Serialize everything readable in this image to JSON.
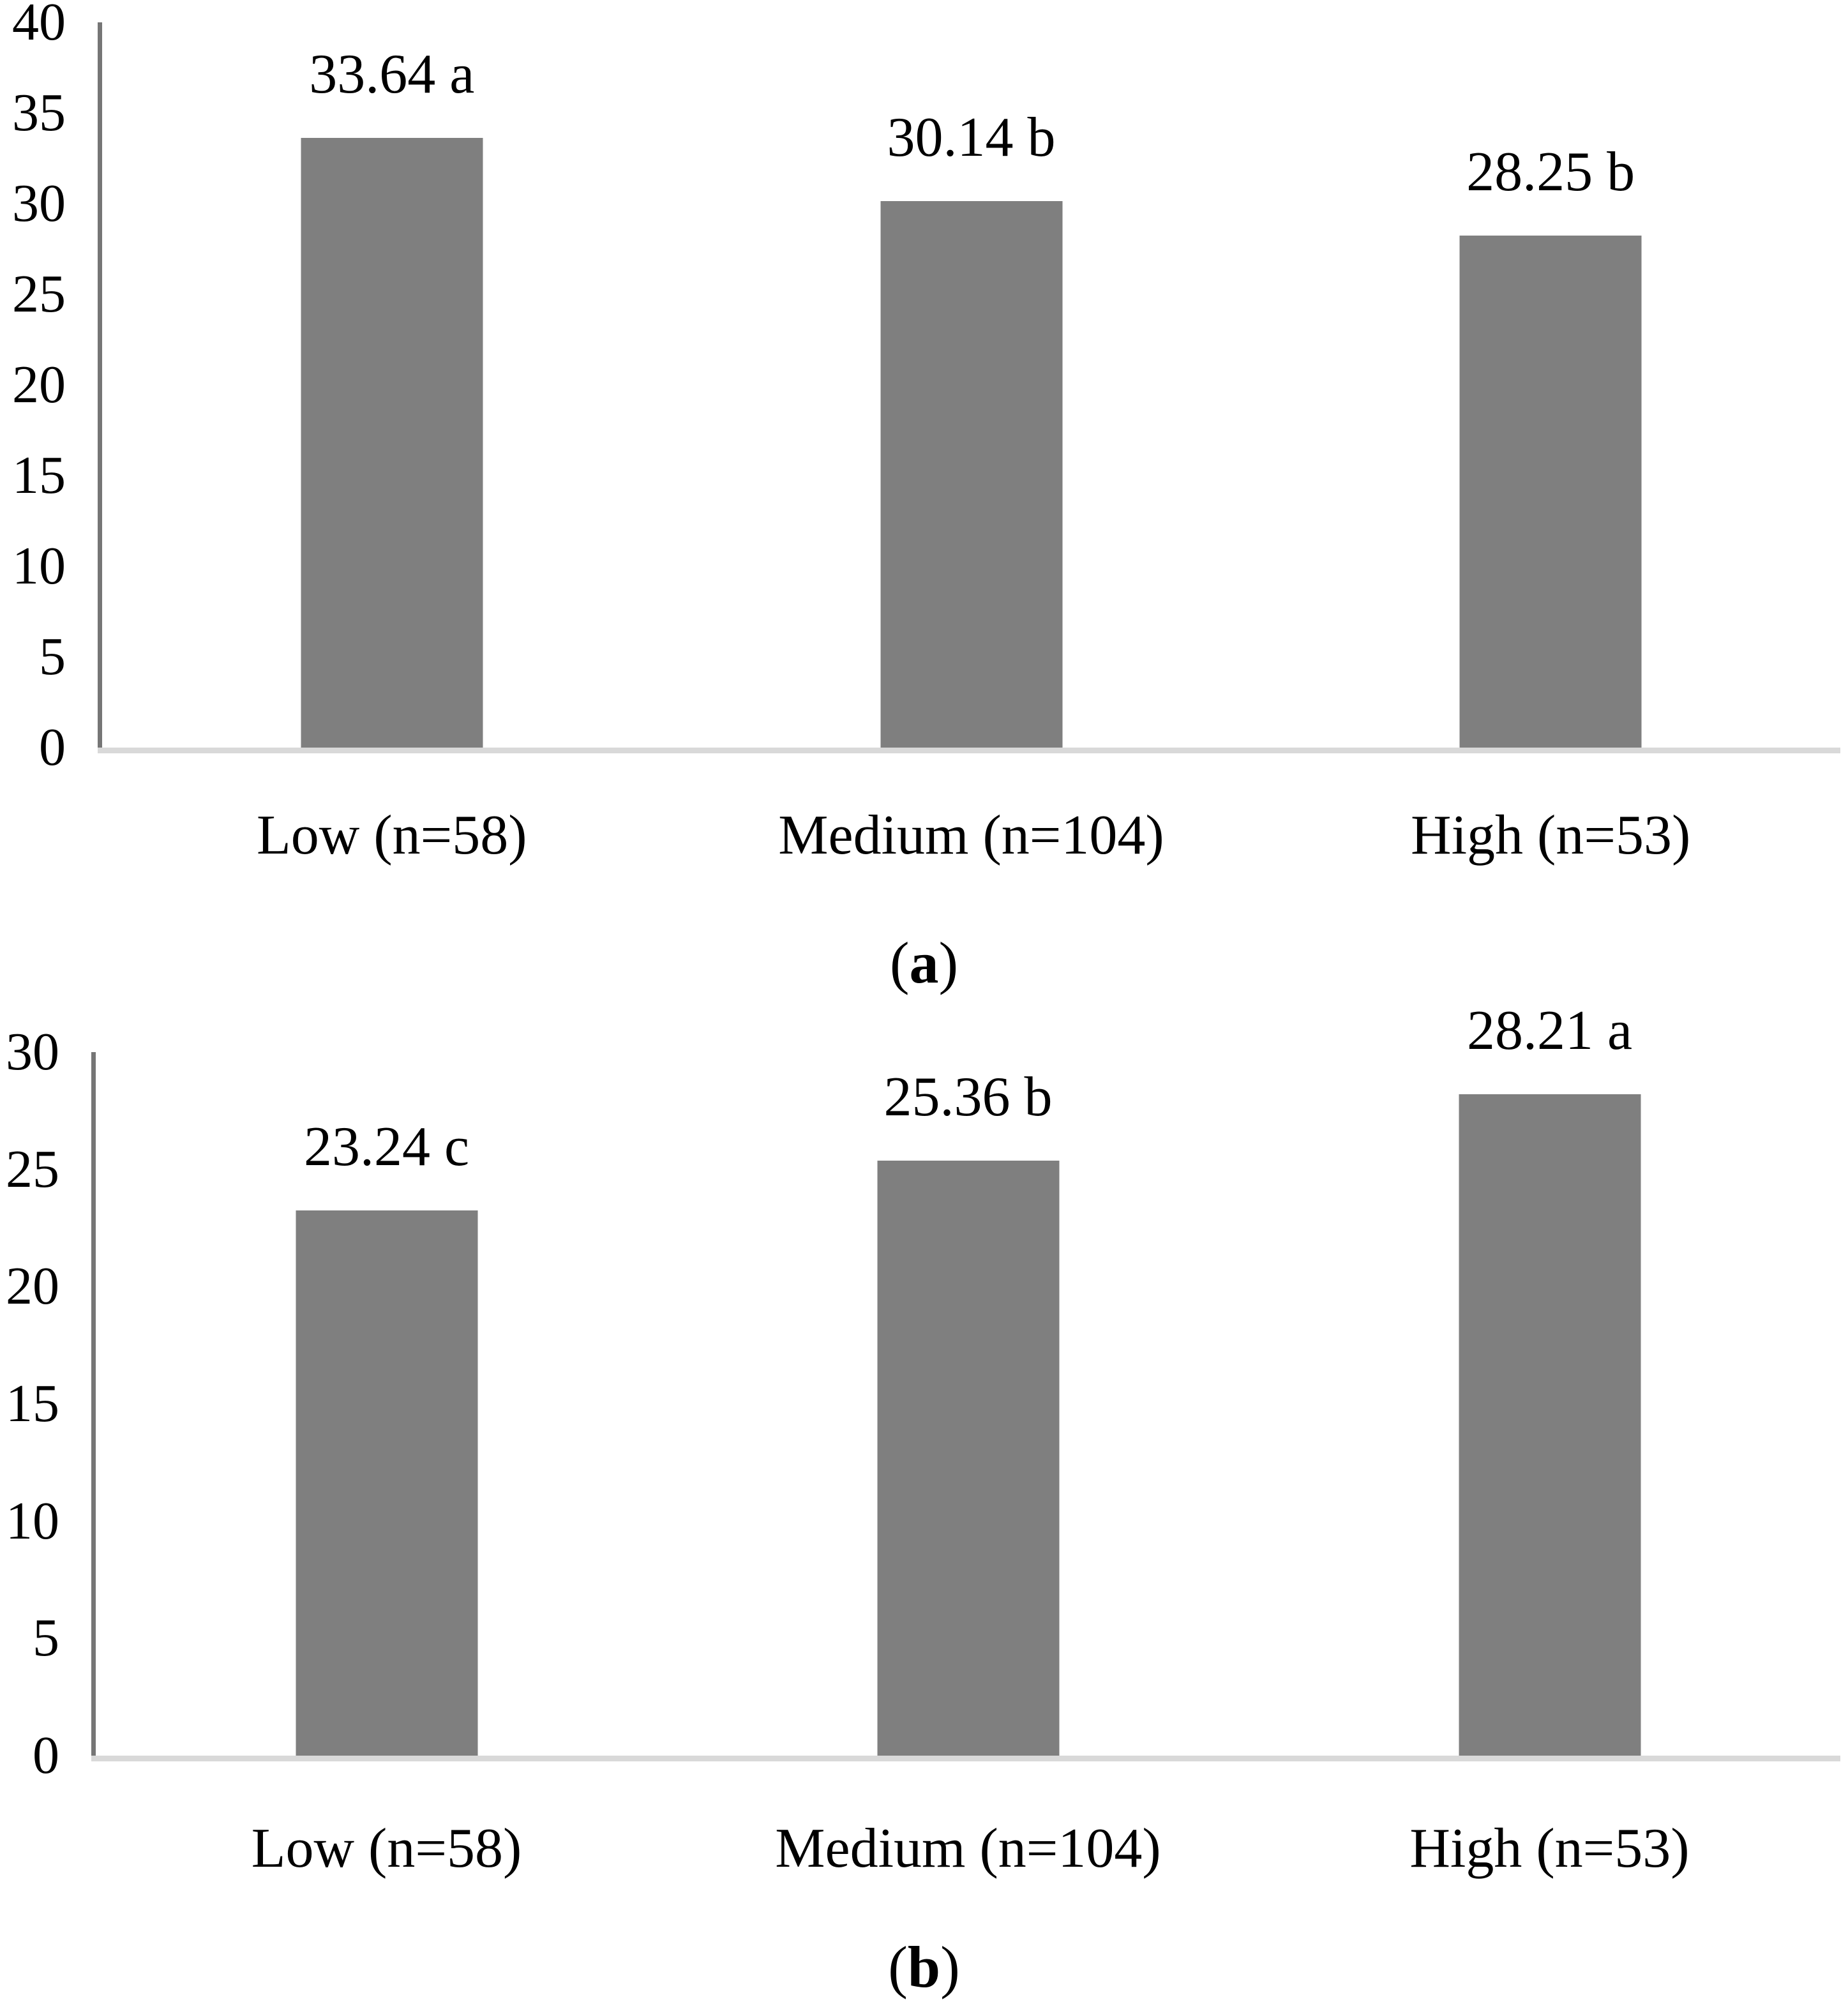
{
  "figure": {
    "background": "#ffffff"
  },
  "colors": {
    "bar": "#7f7f7f",
    "axis_line": "#767676",
    "baseline": "#d9d9d9",
    "text": "#000000"
  },
  "chart_data": [
    {
      "id": "a",
      "type": "bar",
      "title": "",
      "xlabel": "",
      "ylabel": "",
      "categories": [
        "Low (n=58)",
        "Medium (n=104)",
        "High (n=53)"
      ],
      "values": [
        33.64,
        30.14,
        28.25
      ],
      "data_labels": [
        "33.64 a",
        "30.14 b",
        "28.25 b"
      ],
      "significance_letters": [
        "a",
        "b",
        "b"
      ],
      "ylim": [
        0,
        40
      ],
      "yticks": [
        0,
        5,
        10,
        15,
        20,
        25,
        30,
        35,
        40
      ],
      "grid": "off",
      "legend": "none",
      "caption": {
        "open": "(",
        "letter": "a",
        "close": ")"
      }
    },
    {
      "id": "b",
      "type": "bar",
      "title": "",
      "xlabel": "",
      "ylabel": "",
      "categories": [
        "Low (n=58)",
        "Medium (n=104)",
        "High (n=53)"
      ],
      "values": [
        23.24,
        25.36,
        28.21
      ],
      "data_labels": [
        "23.24 c",
        "25.36 b",
        "28.21 a"
      ],
      "significance_letters": [
        "c",
        "b",
        "a"
      ],
      "ylim": [
        0,
        30
      ],
      "yticks": [
        0,
        5,
        10,
        15,
        20,
        25,
        30
      ],
      "grid": "off",
      "legend": "none",
      "caption": {
        "open": "(",
        "letter": "b",
        "close": ")"
      }
    }
  ]
}
